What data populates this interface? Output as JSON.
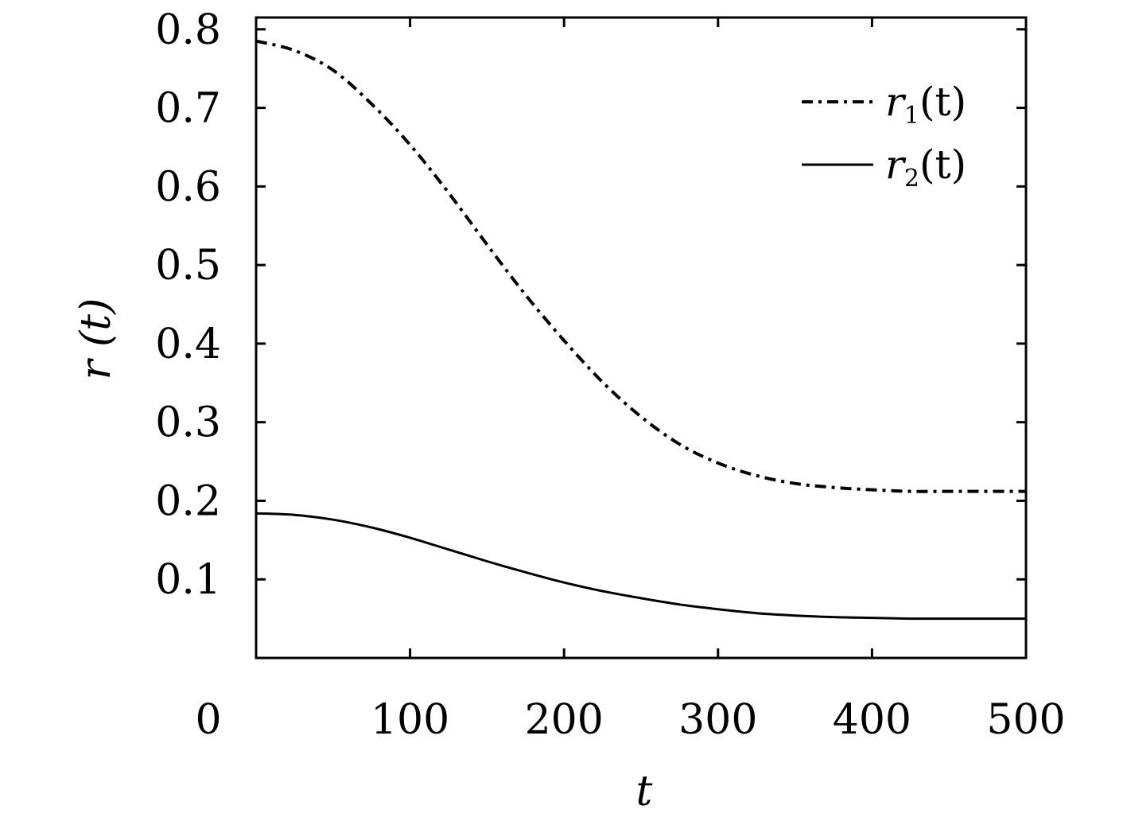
{
  "chart_data": {
    "type": "line",
    "xlabel": "t",
    "ylabel": "r (t)",
    "xlim": [
      0,
      500
    ],
    "ylim": [
      0,
      0.8
    ],
    "xticks": [
      "0",
      "100",
      "200",
      "300",
      "400",
      "500"
    ],
    "yticks": [
      "0.1",
      "0.2",
      "0.3",
      "0.4",
      "0.5",
      "0.6",
      "0.7",
      "0.8"
    ],
    "grid": false,
    "legend_position": "top-right",
    "series": [
      {
        "name": "r1(t)",
        "legend_base": "r",
        "legend_sub": "1",
        "legend_arg": "(t)",
        "style": "dash-dot",
        "x": [
          0,
          25,
          50,
          75,
          100,
          125,
          150,
          175,
          200,
          225,
          250,
          275,
          300,
          325,
          350,
          375,
          400,
          425,
          450,
          475,
          500
        ],
        "y": [
          0.785,
          0.773,
          0.748,
          0.705,
          0.653,
          0.592,
          0.526,
          0.462,
          0.404,
          0.351,
          0.307,
          0.272,
          0.248,
          0.232,
          0.222,
          0.217,
          0.214,
          0.212,
          0.212,
          0.212,
          0.212
        ]
      },
      {
        "name": "r2(t)",
        "legend_base": "r",
        "legend_sub": "2",
        "legend_arg": "(t)",
        "style": "solid",
        "x": [
          0,
          25,
          50,
          75,
          100,
          125,
          150,
          175,
          200,
          225,
          250,
          275,
          300,
          325,
          350,
          375,
          400,
          425,
          450,
          475,
          500
        ],
        "y": [
          0.184,
          0.182,
          0.176,
          0.166,
          0.153,
          0.138,
          0.123,
          0.109,
          0.096,
          0.085,
          0.076,
          0.068,
          0.062,
          0.057,
          0.054,
          0.052,
          0.051,
          0.05,
          0.05,
          0.05,
          0.05
        ]
      }
    ]
  }
}
